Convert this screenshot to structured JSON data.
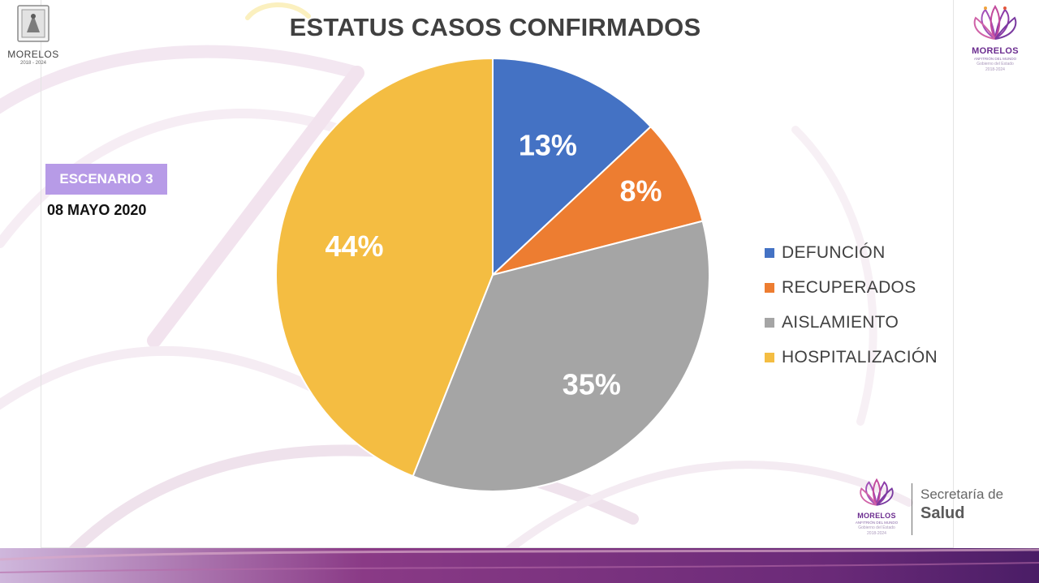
{
  "header": {
    "title": "ESTATUS CASOS CONFIRMADOS"
  },
  "state_seal": {
    "name": "MORELOS",
    "years": "2018 - 2024",
    "seal_text": "TIERRA Y LIBERTAD"
  },
  "scenario": {
    "badge": "ESCENARIO 3",
    "date": "08 MAYO 2020",
    "badge_color": "#b79be7"
  },
  "logo_top": {
    "name": "MORELOS",
    "subtitle": "ANFITRIÓN DEL MUNDO",
    "government": "Gobierno del Estado",
    "years": "2018-2024"
  },
  "footer_logo": {
    "name": "MORELOS",
    "subtitle": "ANFITRIÓN DEL MUNDO",
    "government": "Gobierno del Estado",
    "years": "2018-2024",
    "line1": "Secretaría de",
    "line2": "Salud"
  },
  "chart_data": {
    "type": "pie",
    "title": "ESTATUS CASOS CONFIRMADOS",
    "categories": [
      "DEFUNCIÓN",
      "RECUPERADOS",
      "AISLAMIENTO",
      "HOSPITALIZACIÓN"
    ],
    "values": [
      13,
      8,
      35,
      44
    ],
    "labels": [
      "13%",
      "8%",
      "35%",
      "44%"
    ],
    "colors": [
      "#4472c4",
      "#ed7d31",
      "#a5a5a5",
      "#f4bd42"
    ],
    "start_angle": "12 o'clock",
    "direction": "clockwise",
    "legend_position": "right"
  }
}
